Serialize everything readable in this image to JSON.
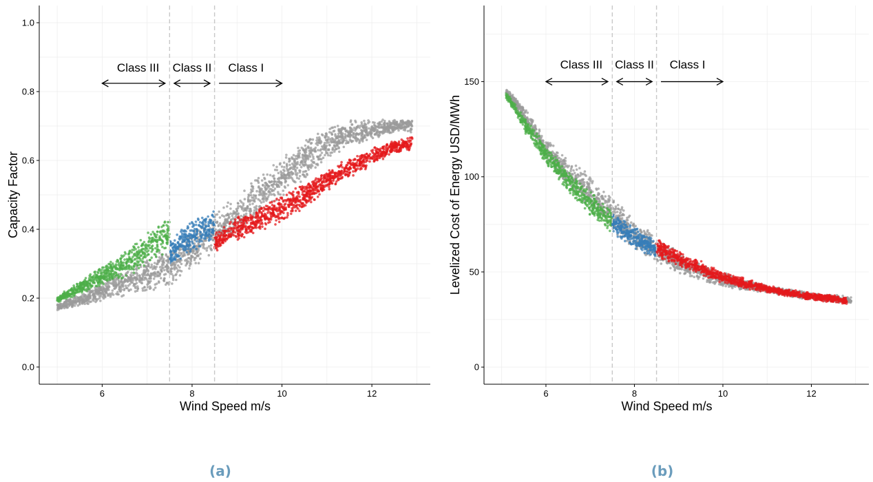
{
  "chart_data": [
    {
      "type": "scatter",
      "panel_label": "(a)",
      "xlabel": "Wind Speed m/s",
      "ylabel": "Capacity Factor",
      "xlim": [
        4.6,
        13.3
      ],
      "ylim": [
        -0.05,
        1.05
      ],
      "xticks": [
        6,
        8,
        10,
        12
      ],
      "yticks": [
        0.0,
        0.2,
        0.4,
        0.6,
        0.8,
        1.0
      ],
      "ytick_labels": [
        "0.0",
        "0.2",
        "0.4",
        "0.6",
        "0.8",
        "1.0"
      ],
      "grid": true,
      "vlines": [
        7.5,
        8.5
      ],
      "annotations": [
        {
          "text": "Class III",
          "x": 6.8,
          "y": 0.87
        },
        {
          "text": "Class II",
          "x": 8.0,
          "y": 0.87
        },
        {
          "text": "Class I",
          "x": 9.2,
          "y": 0.87
        }
      ],
      "arrows": [
        {
          "x1": 6.0,
          "x2": 7.4,
          "y": 0.824
        },
        {
          "x1": 7.6,
          "x2": 8.4,
          "y": 0.824
        },
        {
          "x1": 8.6,
          "x2": 10.0,
          "y": 0.824,
          "head": "end"
        }
      ],
      "series": [
        {
          "color": "#9b9b9b",
          "points": [
            [
              5.0,
              0.175
            ],
            [
              5.5,
              0.195
            ],
            [
              6.0,
              0.22
            ],
            [
              6.5,
              0.245
            ],
            [
              7.0,
              0.265
            ],
            [
              7.5,
              0.29
            ],
            [
              8.0,
              0.34
            ],
            [
              8.5,
              0.39
            ],
            [
              9.0,
              0.44
            ],
            [
              9.5,
              0.5
            ],
            [
              10.0,
              0.55
            ],
            [
              10.5,
              0.6
            ],
            [
              11.0,
              0.65
            ],
            [
              11.5,
              0.68
            ],
            [
              12.0,
              0.69
            ],
            [
              12.5,
              0.7
            ],
            [
              12.9,
              0.7
            ]
          ],
          "spread": [
            0.01,
            0.02,
            0.03,
            0.04,
            0.05,
            0.06,
            0.06,
            0.06,
            0.06,
            0.06,
            0.06,
            0.06,
            0.05,
            0.04,
            0.03,
            0.02,
            0.02
          ]
        },
        {
          "color": "#4daf4a",
          "points": [
            [
              5.0,
              0.195
            ],
            [
              5.5,
              0.23
            ],
            [
              6.0,
              0.265
            ],
            [
              6.5,
              0.3
            ],
            [
              7.0,
              0.34
            ],
            [
              7.5,
              0.39
            ]
          ],
          "spread": [
            0.01,
            0.02,
            0.03,
            0.04,
            0.05,
            0.05
          ]
        },
        {
          "color": "#377eb8",
          "points": [
            [
              7.5,
              0.33
            ],
            [
              8.0,
              0.38
            ],
            [
              8.5,
              0.415
            ]
          ],
          "spread": [
            0.04,
            0.05,
            0.05
          ]
        },
        {
          "color": "#e41a1c",
          "points": [
            [
              8.5,
              0.36
            ],
            [
              9.0,
              0.4
            ],
            [
              9.5,
              0.43
            ],
            [
              10.0,
              0.46
            ],
            [
              10.5,
              0.5
            ],
            [
              11.0,
              0.54
            ],
            [
              11.5,
              0.58
            ],
            [
              12.0,
              0.61
            ],
            [
              12.5,
              0.64
            ],
            [
              12.9,
              0.65
            ]
          ],
          "spread": [
            0.03,
            0.04,
            0.04,
            0.04,
            0.04,
            0.03,
            0.03,
            0.03,
            0.02,
            0.02
          ]
        }
      ]
    },
    {
      "type": "scatter",
      "panel_label": "(b)",
      "xlabel": "Wind Speed m/s",
      "ylabel": "Levelized Cost of Energy USD/MWh",
      "xlim": [
        4.6,
        13.3
      ],
      "ylim": [
        -9,
        190
      ],
      "xticks": [
        6,
        8,
        10,
        12
      ],
      "yticks": [
        0,
        50,
        100,
        150
      ],
      "ytick_labels": [
        "0",
        "50",
        "100",
        "150"
      ],
      "grid": true,
      "vlines": [
        7.5,
        8.5
      ],
      "annotations": [
        {
          "text": "Class III",
          "x": 6.8,
          "y": 159
        },
        {
          "text": "Class II",
          "x": 8.0,
          "y": 159
        },
        {
          "text": "Class I",
          "x": 9.2,
          "y": 159
        }
      ],
      "arrows": [
        {
          "x1": 6.0,
          "x2": 7.4,
          "y": 150
        },
        {
          "x1": 7.6,
          "x2": 8.4,
          "y": 150
        },
        {
          "x1": 8.6,
          "x2": 10.0,
          "y": 150,
          "head": "end"
        }
      ],
      "series": [
        {
          "color": "#9b9b9b",
          "points": [
            [
              5.1,
              145
            ],
            [
              5.5,
              133
            ],
            [
              6.0,
              115
            ],
            [
              6.5,
              102
            ],
            [
              7.0,
              92
            ],
            [
              7.5,
              80
            ],
            [
              8.0,
              70
            ],
            [
              8.5,
              62
            ],
            [
              9.0,
              55
            ],
            [
              9.5,
              50
            ],
            [
              10.0,
              46
            ],
            [
              10.5,
              43
            ],
            [
              11.0,
              41
            ],
            [
              11.5,
              39
            ],
            [
              12.0,
              37
            ],
            [
              12.5,
              36
            ],
            [
              12.9,
              35
            ]
          ],
          "spread": [
            2,
            4,
            6,
            8,
            9,
            9,
            8,
            7,
            6,
            5,
            4,
            3,
            2,
            2,
            2,
            2,
            2
          ]
        },
        {
          "color": "#4daf4a",
          "points": [
            [
              5.1,
              143
            ],
            [
              5.5,
              128
            ],
            [
              6.0,
              112
            ],
            [
              6.5,
              98
            ],
            [
              7.0,
              86
            ],
            [
              7.5,
              76
            ]
          ],
          "spread": [
            2,
            4,
            5,
            6,
            7,
            7
          ]
        },
        {
          "color": "#377eb8",
          "points": [
            [
              7.5,
              76
            ],
            [
              8.0,
              68
            ],
            [
              8.5,
              62
            ]
          ],
          "spread": [
            6,
            6,
            5
          ]
        },
        {
          "color": "#e41a1c",
          "points": [
            [
              8.5,
              63
            ],
            [
              9.0,
              57
            ],
            [
              9.5,
              52
            ],
            [
              10.0,
              47
            ],
            [
              10.5,
              44
            ],
            [
              11.0,
              41
            ],
            [
              11.5,
              39
            ],
            [
              12.0,
              37
            ],
            [
              12.5,
              36
            ],
            [
              12.8,
              35
            ]
          ],
          "spread": [
            5,
            4,
            4,
            3,
            3,
            2,
            2,
            2,
            2,
            2
          ]
        }
      ]
    }
  ]
}
